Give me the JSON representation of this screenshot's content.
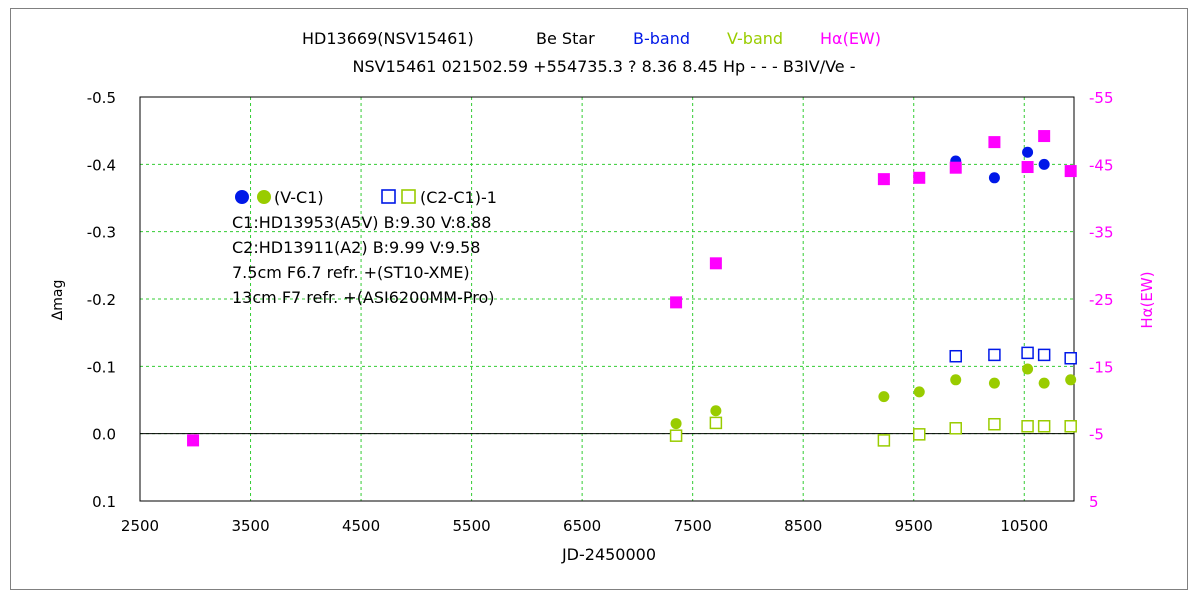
{
  "colors": {
    "b_band": "#0018e8",
    "v_band": "#99cc00",
    "h_alpha": "#ff00ff",
    "grid": "#33cc33"
  },
  "chart_data": {
    "type": "scatter",
    "title": {
      "star": "HD13669(NSV15461)",
      "kind": "Be Star",
      "b_label": "B-band",
      "v_label": "V-band",
      "h_label": "Hα(EW)",
      "line2": "NSV15461 021502.59 +554735.3 ? 8.36 8.45 Hp - - - B3IV/Ve -"
    },
    "xlabel": "JD-2450000",
    "ylabel": "Δmag",
    "y2label": "Hα(EW)",
    "xlim": [
      2500,
      10950
    ],
    "ylim": [
      0.1,
      -0.5
    ],
    "y2lim": [
      5,
      -55
    ],
    "x_ticks": [
      "2500",
      "3500",
      "4500",
      "5500",
      "6500",
      "7500",
      "8500",
      "9500",
      "10500"
    ],
    "y_ticks": [
      "-0.5",
      "-0.4",
      "-0.3",
      "-0.2",
      "-0.1",
      "0.0",
      "0.1"
    ],
    "y2_ticks": [
      "-55",
      "-45",
      "-35",
      "-25",
      "-15",
      "-5",
      "5"
    ],
    "grid": true,
    "legend": {
      "vc1": "(V-C1)",
      "c2c1": "(C2-C1)-1",
      "lines": [
        "C1:HD13953(A5V) B:9.30 V:8.88",
        "C2:HD13911(A2) B:9.99 V:9.58",
        "7.5cm  F6.7 refr. +(ST10-XME)",
        "13cm  F7 refr. +(ASI6200MM-Pro)"
      ]
    },
    "series": [
      {
        "name": "B-band (V-C1)",
        "marker": "filled-circle",
        "color": "b_band",
        "x": [
          9880,
          10230,
          10530,
          10680,
          10920
        ],
        "y": [
          -0.405,
          -0.38,
          -0.418,
          -0.4,
          -0.39
        ]
      },
      {
        "name": "V-band (V-C1)",
        "marker": "filled-circle",
        "color": "v_band",
        "x": [
          7350,
          7710,
          9230,
          9550,
          9880,
          10230,
          10530,
          10680,
          10920
        ],
        "y": [
          -0.015,
          -0.034,
          -0.055,
          -0.062,
          -0.08,
          -0.075,
          -0.096,
          -0.075,
          -0.08
        ]
      },
      {
        "name": "B-band (C2-C1)-1",
        "marker": "open-square",
        "color": "b_band",
        "x": [
          9880,
          10230,
          10530,
          10680,
          10920
        ],
        "y": [
          -0.115,
          -0.117,
          -0.12,
          -0.117,
          -0.112
        ]
      },
      {
        "name": "V-band (C2-C1)-1",
        "marker": "open-square",
        "color": "v_band",
        "x": [
          7350,
          7710,
          9230,
          9550,
          9880,
          10230,
          10530,
          10680,
          10920
        ],
        "y": [
          0.003,
          -0.016,
          0.01,
          0.001,
          -0.008,
          -0.014,
          -0.011,
          -0.011,
          -0.011
        ]
      },
      {
        "name": "Hα(EW)",
        "marker": "filled-square",
        "axis": "right",
        "color": "h_alpha",
        "x": [
          2980,
          7350,
          7710,
          9230,
          9550,
          9880,
          10230,
          10530,
          10680,
          10920
        ],
        "y": [
          -4.0,
          -24.5,
          -30.3,
          -42.8,
          -43.0,
          -44.5,
          -48.3,
          -44.6,
          -49.2,
          -44.0
        ]
      }
    ]
  }
}
